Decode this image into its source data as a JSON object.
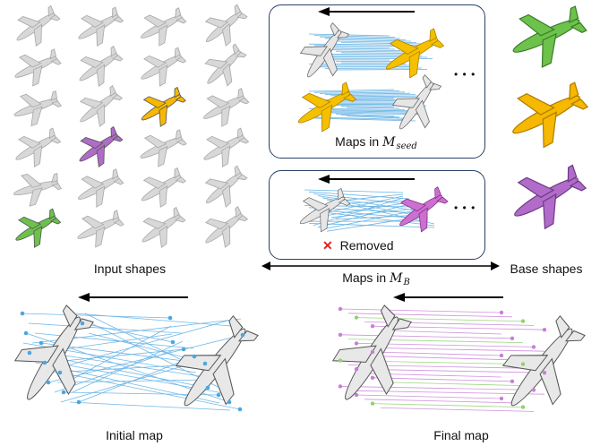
{
  "labels": {
    "input_shapes": "Input shapes",
    "base_shapes": "Base shapes",
    "maps_seed_prefix": "Maps in",
    "maps_seed_symbol": "M",
    "maps_seed_sub": "seed",
    "maps_b_prefix": "Maps in",
    "maps_b_symbol": "M",
    "maps_b_sub": "B",
    "removed": "Removed",
    "initial_map": "Initial map",
    "final_map": "Final map",
    "ellipsis": "• • •"
  },
  "colors": {
    "gray_plane": "#d9d9d9",
    "green_plane": "#6cc24a",
    "yellow_plane": "#f6b800",
    "purple_plane": "#b06cc8",
    "map_lines_blue": "#4da6e0",
    "map_lines_purple": "#c77fd6",
    "map_lines_green": "#8fd36e",
    "panel_border": "#2a3f6a",
    "removed_x": "#e02020"
  }
}
